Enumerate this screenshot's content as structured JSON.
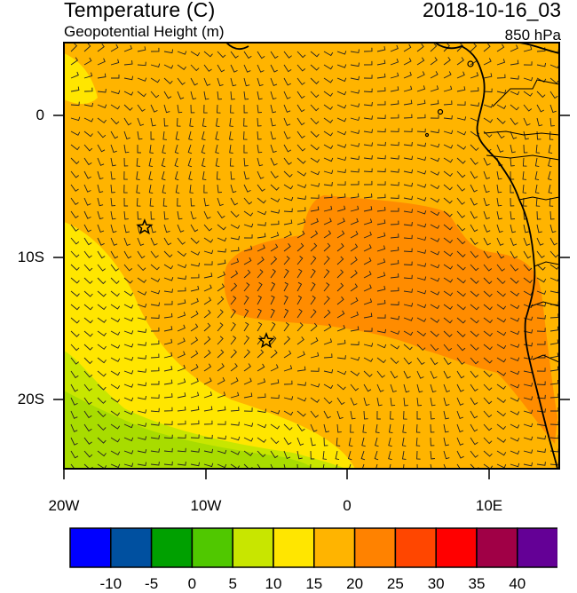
{
  "title": "Temperature (C)",
  "subtitle": "Geopotential Height (m)",
  "datetime": "2018-10-16_03",
  "level": "850 hPa",
  "map": {
    "lon_labels": [
      "20W",
      "10W",
      "0",
      "10E"
    ],
    "lat_labels": [
      "0",
      "10S",
      "20S"
    ],
    "markers": [
      {
        "name": "station-star-1",
        "lon": -14.3,
        "lat": -8.0
      },
      {
        "name": "station-star-2",
        "lon": -5.7,
        "lat": -16.0
      }
    ]
  },
  "colorbar": {
    "labels": [
      "-10",
      "-5",
      "0",
      "5",
      "10",
      "15",
      "20",
      "25",
      "30",
      "35",
      "40"
    ],
    "colors": [
      "#0000ff",
      "#0050a0",
      "#00a000",
      "#50c800",
      "#c8e600",
      "#ffe600",
      "#ffb400",
      "#ff8200",
      "#ff4600",
      "#ff0000",
      "#a00046",
      "#640096"
    ]
  }
}
